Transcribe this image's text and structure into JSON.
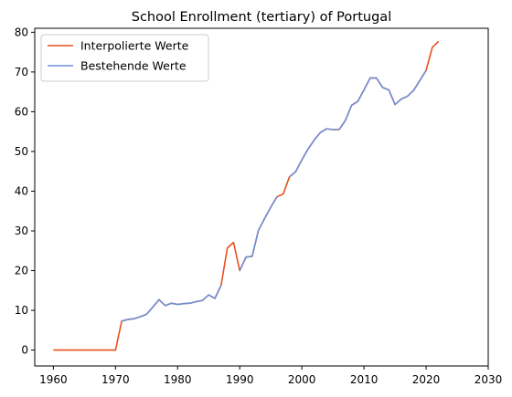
{
  "chart_data": {
    "type": "line",
    "title": "School Enrollment (tertiary) of Portugal",
    "xlabel": "",
    "ylabel": "",
    "xlim": [
      1957,
      2030
    ],
    "ylim": [
      -4,
      81
    ],
    "xticks": [
      1960,
      1970,
      1980,
      1990,
      2000,
      2010,
      2020,
      2030
    ],
    "yticks": [
      0,
      10,
      20,
      30,
      40,
      50,
      60,
      70,
      80
    ],
    "grid": false,
    "legend_position": "top-left",
    "series": [
      {
        "name": "Interpolierte Werte",
        "color": "#e8501e",
        "points": [
          [
            1960,
            0
          ],
          [
            1961,
            0
          ],
          [
            1962,
            0
          ],
          [
            1963,
            0
          ],
          [
            1964,
            0
          ],
          [
            1965,
            0
          ],
          [
            1966,
            0
          ],
          [
            1967,
            0
          ],
          [
            1968,
            0
          ],
          [
            1969,
            0
          ],
          [
            1970,
            0
          ],
          [
            1971,
            7.3
          ],
          [
            1972,
            7.7
          ],
          [
            1973,
            7.9
          ],
          [
            1974,
            8.4
          ],
          [
            1975,
            9.0
          ],
          [
            1976,
            10.8
          ],
          [
            1977,
            12.7
          ],
          [
            1978,
            11.2
          ],
          [
            1979,
            11.8
          ],
          [
            1980,
            11.5
          ],
          [
            1981,
            11.7
          ],
          [
            1982,
            11.8
          ],
          [
            1983,
            12.2
          ],
          [
            1984,
            12.5
          ],
          [
            1985,
            13.9
          ],
          [
            1986,
            13.0
          ],
          [
            1987,
            16.3
          ],
          [
            1988,
            25.7
          ],
          [
            1989,
            27.1
          ],
          [
            1990,
            20.0
          ],
          [
            1991,
            23.4
          ],
          [
            1992,
            23.6
          ],
          [
            1993,
            30.1
          ],
          [
            1994,
            33.1
          ],
          [
            1995,
            36.0
          ],
          [
            1996,
            38.6
          ],
          [
            1997,
            39.3
          ],
          [
            1998,
            43.6
          ],
          [
            1999,
            44.9
          ],
          [
            2000,
            47.9
          ],
          [
            2001,
            50.6
          ],
          [
            2002,
            52.9
          ],
          [
            2003,
            54.8
          ],
          [
            2004,
            55.7
          ],
          [
            2005,
            55.5
          ],
          [
            2006,
            55.5
          ],
          [
            2007,
            57.8
          ],
          [
            2008,
            61.6
          ],
          [
            2009,
            62.6
          ],
          [
            2010,
            65.5
          ],
          [
            2011,
            68.5
          ],
          [
            2012,
            68.5
          ],
          [
            2013,
            66.1
          ],
          [
            2014,
            65.5
          ],
          [
            2015,
            61.8
          ],
          [
            2016,
            63.2
          ],
          [
            2017,
            63.9
          ],
          [
            2018,
            65.4
          ],
          [
            2019,
            67.9
          ],
          [
            2020,
            70.4
          ],
          [
            2021,
            76.2
          ],
          [
            2022,
            77.7
          ]
        ]
      },
      {
        "name": "Bestehende Werte",
        "color": "#6f8fd8",
        "points": [
          [
            1971,
            7.3
          ],
          [
            1972,
            7.7
          ],
          [
            1973,
            7.9
          ],
          [
            1974,
            8.4
          ],
          [
            1975,
            9.0
          ],
          [
            1976,
            10.8
          ],
          [
            1977,
            12.7
          ],
          [
            1978,
            11.2
          ],
          [
            1979,
            11.8
          ],
          [
            1980,
            11.5
          ],
          [
            1981,
            11.7
          ],
          [
            1982,
            11.8
          ],
          [
            1983,
            12.2
          ],
          [
            1984,
            12.5
          ],
          [
            1985,
            13.9
          ],
          [
            1986,
            13.0
          ],
          [
            1987,
            16.3
          ]
        ]
      },
      {
        "name": "Bestehende Werte",
        "color": "#6f8fd8",
        "points": [
          [
            1990,
            20.0
          ],
          [
            1991,
            23.4
          ],
          [
            1992,
            23.6
          ],
          [
            1993,
            30.1
          ],
          [
            1994,
            33.1
          ],
          [
            1995,
            36.0
          ],
          [
            1996,
            38.6
          ]
        ]
      },
      {
        "name": "Bestehende Werte",
        "color": "#6f8fd8",
        "points": [
          [
            1998,
            43.6
          ],
          [
            1999,
            44.9
          ],
          [
            2000,
            47.9
          ],
          [
            2001,
            50.6
          ],
          [
            2002,
            52.9
          ],
          [
            2003,
            54.8
          ],
          [
            2004,
            55.7
          ],
          [
            2005,
            55.5
          ],
          [
            2006,
            55.5
          ],
          [
            2007,
            57.8
          ],
          [
            2008,
            61.6
          ],
          [
            2009,
            62.6
          ],
          [
            2010,
            65.5
          ],
          [
            2011,
            68.5
          ],
          [
            2012,
            68.5
          ],
          [
            2013,
            66.1
          ],
          [
            2014,
            65.5
          ],
          [
            2015,
            61.8
          ],
          [
            2016,
            63.2
          ],
          [
            2017,
            63.9
          ],
          [
            2018,
            65.4
          ],
          [
            2019,
            67.9
          ],
          [
            2020,
            70.4
          ]
        ]
      }
    ],
    "legend": [
      {
        "label": "Interpolierte Werte",
        "color": "#e8501e"
      },
      {
        "label": "Bestehende Werte",
        "color": "#6f8fd8"
      }
    ]
  }
}
